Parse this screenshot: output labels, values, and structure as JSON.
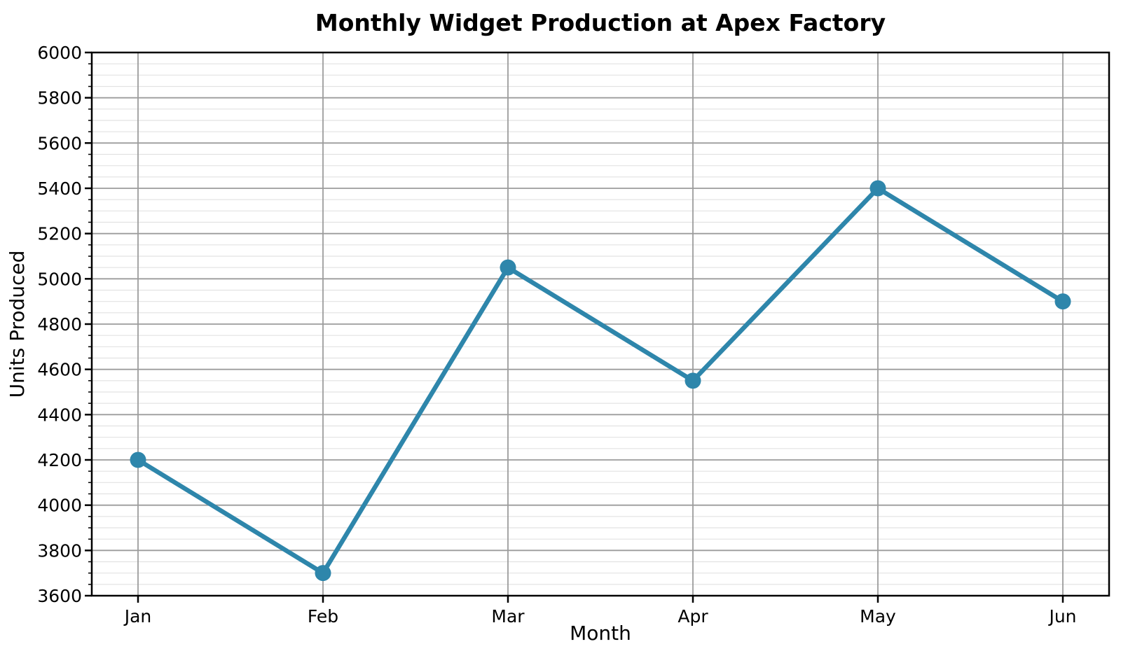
{
  "chart_data": {
    "type": "line",
    "title": "Monthly Widget Production at Apex Factory",
    "xlabel": "Month",
    "ylabel": "Units Produced",
    "categories": [
      "Jan",
      "Feb",
      "Mar",
      "Apr",
      "May",
      "Jun"
    ],
    "series": [
      {
        "name": "Units Produced",
        "values": [
          4200,
          3700,
          5050,
          4550,
          5400,
          4900
        ]
      }
    ],
    "ylim": [
      3600,
      6000
    ],
    "ytick_step": 200,
    "yminor_step": 50,
    "ytick_labels": [
      "3600",
      "3800",
      "4000",
      "4200",
      "4400",
      "4600",
      "4800",
      "5000",
      "5200",
      "5400",
      "5600",
      "5800",
      "6000"
    ],
    "grid": true,
    "legend_position": "none",
    "colors": {
      "line": "#2e86ab",
      "marker": "#2e86ab",
      "grid_major": "#9c9c9c",
      "grid_minor": "#e2e2e2",
      "axis": "#000000",
      "text": "#000000",
      "background": "#ffffff"
    }
  }
}
